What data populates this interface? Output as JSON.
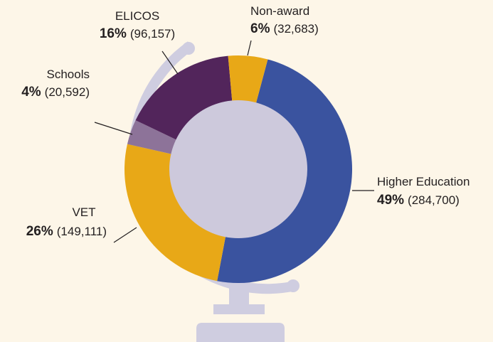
{
  "chart_data": {
    "type": "donut",
    "categories": [
      "Higher Education",
      "VET",
      "Schools",
      "ELICOS",
      "Non-award"
    ],
    "values": [
      284700,
      149111,
      20592,
      96157,
      32683
    ],
    "value_labels": [
      "(284,700)",
      "(149,111)",
      "(20,592)",
      "(96,157)",
      "(32,683)"
    ],
    "shares": [
      49,
      26,
      4,
      16,
      6
    ],
    "share_labels": [
      "49%",
      "26%",
      "4%",
      "16%",
      "6%"
    ],
    "colors": [
      "#3a539f",
      "#e8a817",
      "#8d7399",
      "#52255b",
      "#e8a817"
    ]
  }
}
